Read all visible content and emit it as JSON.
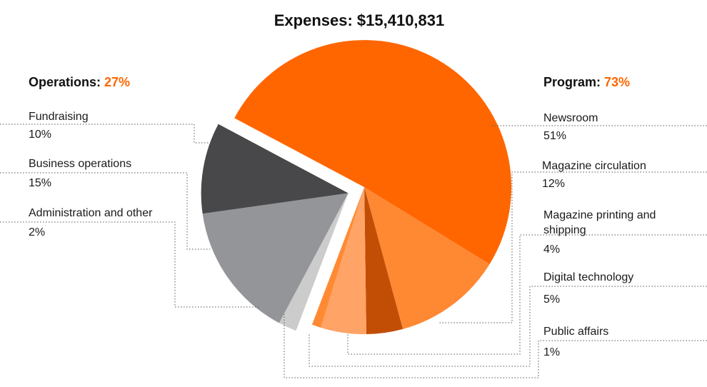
{
  "chart_data": {
    "type": "pie",
    "title": "Expenses: $15,410,831",
    "groups": [
      {
        "name": "Program",
        "percent_label": "73%",
        "side": "right"
      },
      {
        "name": "Operations",
        "percent_label": "27%",
        "side": "left"
      }
    ],
    "slices": [
      {
        "label": "Newsroom",
        "value": 51,
        "value_label": "51%",
        "group": "Program",
        "color": "#ff6600"
      },
      {
        "label": "Magazine circulation",
        "value": 12,
        "value_label": "12%",
        "group": "Program",
        "color": "#ff8833"
      },
      {
        "label": "Magazine printing and shipping",
        "value": 4,
        "value_label": "4%",
        "group": "Program",
        "color": "#c24e05"
      },
      {
        "label": "Digital technology",
        "value": 5,
        "value_label": "5%",
        "group": "Program",
        "color": "#ffa366"
      },
      {
        "label": "Public affairs",
        "value": 1,
        "value_label": "1%",
        "group": "Program",
        "color": "#ff8a33"
      },
      {
        "label": "Administration and other",
        "value": 2,
        "value_label": "2%",
        "group": "Operations",
        "color": "#cccccd"
      },
      {
        "label": "Business operations",
        "value": 15,
        "value_label": "15%",
        "group": "Operations",
        "color": "#939598"
      },
      {
        "label": "Fundraising",
        "value": 10,
        "value_label": "10%",
        "group": "Operations",
        "color": "#48484a"
      }
    ],
    "colors": {
      "accent": "#ff6600",
      "text": "#111111",
      "leader": "#555555"
    }
  }
}
